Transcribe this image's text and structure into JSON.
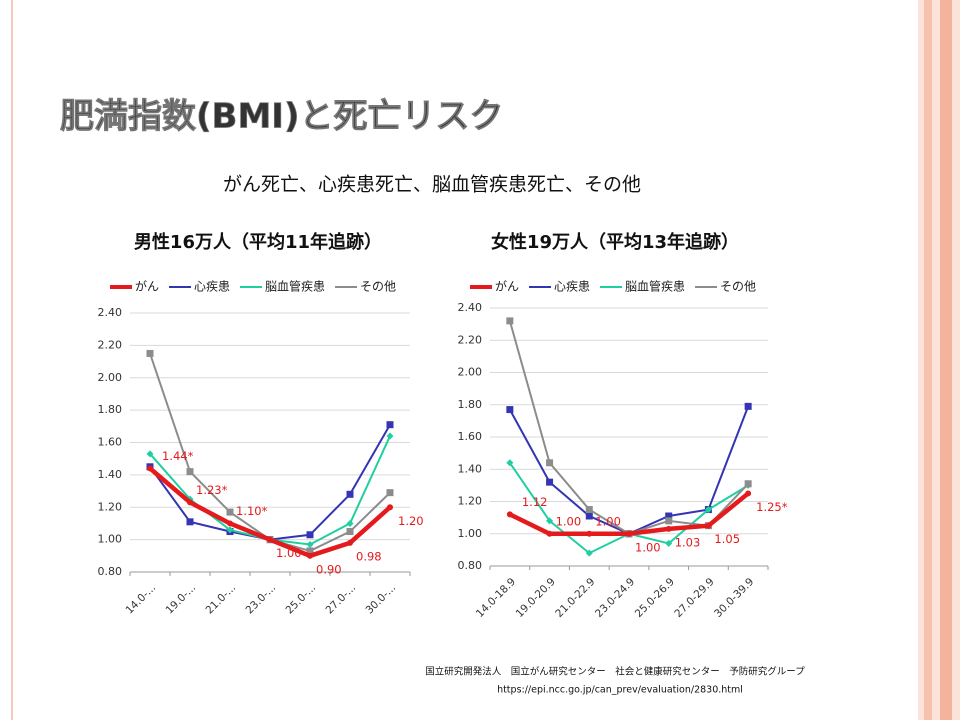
{
  "title": "肥満指数(BMI)と死亡リスク",
  "subtitle": "がん死亡、心疾患死亡、脳血管疾患死亡、その他",
  "source": [
    "国立研究開発法人　国立がん研究センター　社会と健康研究センター　予防研究グループ",
    "https://epi.ncc.go.jp/can_prev/evaluation/2830.html"
  ],
  "chart_data": [
    {
      "type": "line",
      "title": "男性16万人（平均11年追跡）",
      "categories": [
        "14.0-...",
        "19.0-...",
        "21.0-...",
        "23.0-...",
        "25.0-...",
        "27.0-...",
        "30.0-..."
      ],
      "ylim": [
        0.8,
        2.4
      ],
      "yticks": [
        {
          "value": 0.8,
          "label": "0.80"
        },
        {
          "value": 1,
          "label": "1.00"
        },
        {
          "value": 1.2,
          "label": "1.20"
        },
        {
          "value": 1.4,
          "label": "1.40"
        },
        {
          "value": 1.6,
          "label": "1.60"
        },
        {
          "value": 1.8,
          "label": "1.80"
        },
        {
          "value": 2,
          "label": "2.00"
        },
        {
          "value": 2.2,
          "label": "2.20"
        },
        {
          "value": 2.4,
          "label": "2.40"
        }
      ],
      "grid": true,
      "legend": "top",
      "series": [
        {
          "name": "がん",
          "color": "#e41a1c",
          "values": [
            1.44,
            1.23,
            1.1,
            1.0,
            0.9,
            0.98,
            1.2
          ],
          "value_labels": [
            "1.44*",
            "1.23*",
            "1.10*",
            "1.00",
            "0.90",
            "0.98",
            "1.20"
          ]
        },
        {
          "name": "心疾患",
          "color": "#3434b4",
          "values": [
            1.45,
            1.11,
            1.05,
            1.0,
            1.03,
            1.28,
            1.71
          ]
        },
        {
          "name": "脳血管疾患",
          "color": "#1fcfa0",
          "values": [
            1.53,
            1.25,
            1.06,
            1.0,
            0.97,
            1.1,
            1.64
          ]
        },
        {
          "name": "その他",
          "color": "#8c8c8c",
          "values": [
            2.15,
            1.42,
            1.17,
            1.0,
            0.93,
            1.05,
            1.29
          ]
        }
      ]
    },
    {
      "type": "line",
      "title": "女性19万人（平均13年追跡）",
      "categories": [
        "14.0-18.9",
        "19.0-20.9",
        "21.0-22.9",
        "23.0-24.9",
        "25.0-26.9",
        "27.0-29.9",
        "30.0-39.9"
      ],
      "ylim": [
        0.8,
        2.4
      ],
      "yticks": [
        {
          "value": 0.8,
          "label": "0.80"
        },
        {
          "value": 1,
          "label": "1.00"
        },
        {
          "value": 1.2,
          "label": "1.20"
        },
        {
          "value": 1.4,
          "label": "1.40"
        },
        {
          "value": 1.6,
          "label": "1.60"
        },
        {
          "value": 1.8,
          "label": "1.80"
        },
        {
          "value": 2,
          "label": "2.00"
        },
        {
          "value": 2.2,
          "label": "2.20"
        },
        {
          "value": 2.4,
          "label": "2.40"
        }
      ],
      "grid": true,
      "legend": "top",
      "series": [
        {
          "name": "がん",
          "color": "#e41a1c",
          "values": [
            1.12,
            1.0,
            1.0,
            1.0,
            1.03,
            1.05,
            1.25
          ],
          "value_labels": [
            "1.12",
            "1.00",
            "1.00",
            "1.00",
            "1.03",
            "1.05",
            "1.25*"
          ]
        },
        {
          "name": "心疾患",
          "color": "#3434b4",
          "values": [
            1.77,
            1.32,
            1.11,
            1.0,
            1.11,
            1.15,
            1.79
          ]
        },
        {
          "name": "脳血管疾患",
          "color": "#1fcfa0",
          "values": [
            1.44,
            1.08,
            0.88,
            1.0,
            0.94,
            1.15,
            1.3
          ]
        },
        {
          "name": "その他",
          "color": "#8c8c8c",
          "values": [
            2.32,
            1.44,
            1.15,
            1.0,
            1.08,
            1.05,
            1.31
          ]
        }
      ]
    }
  ]
}
